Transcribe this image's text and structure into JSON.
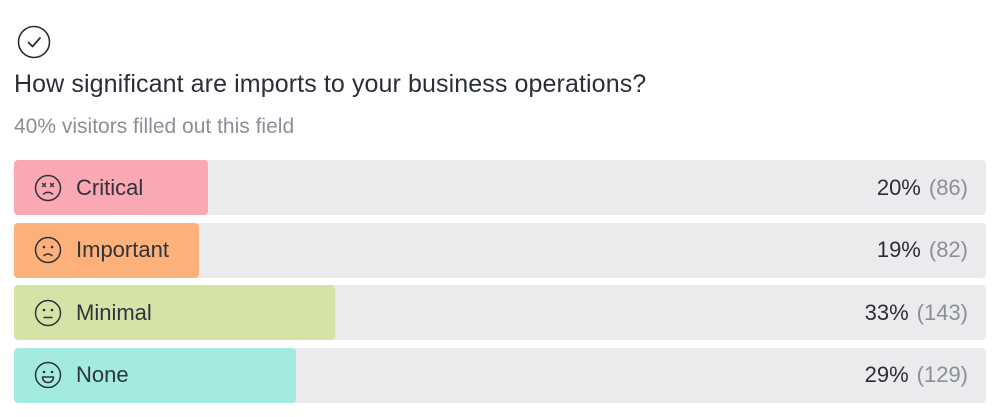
{
  "question": {
    "title": "How significant are imports to your business operations?",
    "subtitle": "40% visitors filled out this field"
  },
  "options": [
    {
      "label": "Critical",
      "percent": "20%",
      "count": "(86)",
      "fill_fraction": 0.2,
      "color": "#f9a8b4",
      "icon": "dizzy-face-icon"
    },
    {
      "label": "Important",
      "percent": "19%",
      "count": "(82)",
      "fill_fraction": 0.19,
      "color": "#fdb07a",
      "icon": "sad-face-icon"
    },
    {
      "label": "Minimal",
      "percent": "33%",
      "count": "(143)",
      "fill_fraction": 0.33,
      "color": "#d4e4a6",
      "icon": "neutral-face-icon"
    },
    {
      "label": "None",
      "percent": "29%",
      "count": "(129)",
      "fill_fraction": 0.29,
      "color": "#a3ebe0",
      "icon": "happy-face-icon"
    }
  ]
}
